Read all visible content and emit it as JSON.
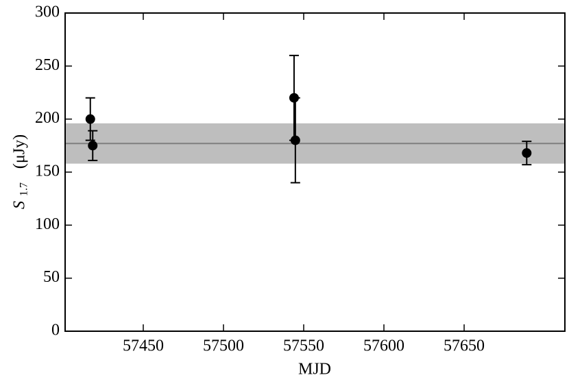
{
  "chart_data": {
    "type": "scatter",
    "xlabel": "MJD",
    "ylabel": {
      "symbol": "S",
      "subscript": "1.7",
      "unit": "(μJy)"
    },
    "xlim": [
      57401.3,
      57712.8
    ],
    "ylim": [
      0,
      300
    ],
    "xticks": [
      57450,
      57500,
      57550,
      57600,
      57650
    ],
    "yticks": [
      0,
      50,
      100,
      150,
      200,
      250,
      300
    ],
    "band": [
      158,
      196
    ],
    "band_color": "#bebebe",
    "mean": 177,
    "mean_color": "#7f7f7f",
    "series": [
      {
        "color": "#000000",
        "x": [
          57417,
          57418.5,
          57544,
          57544.8,
          57689
        ],
        "values": [
          200,
          175,
          220,
          180,
          168
        ],
        "errors": [
          20,
          14,
          40,
          40,
          11
        ]
      }
    ]
  }
}
